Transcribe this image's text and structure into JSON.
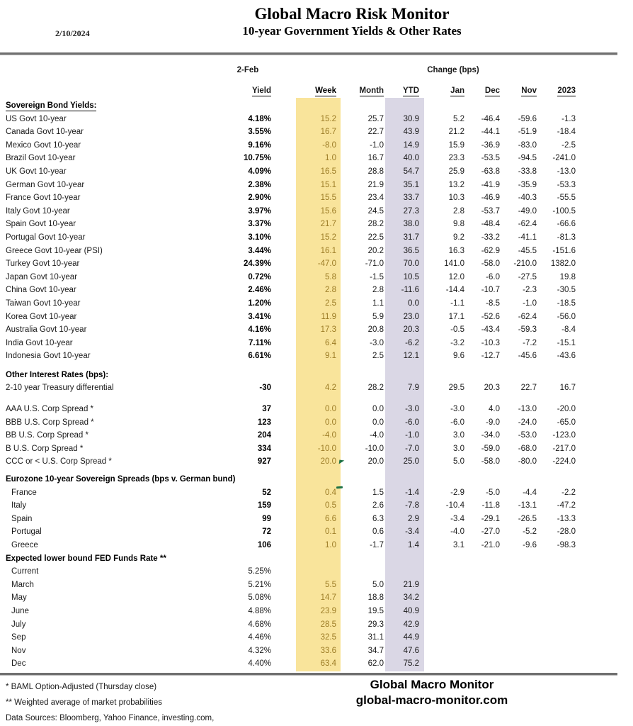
{
  "header": {
    "date": "2/10/2024",
    "title": "Global Macro Risk Monitor",
    "subtitle": "10-year Government Yields & Other Rates"
  },
  "table": {
    "as_of_label": "2-Feb",
    "change_group_label": "Change (bps)",
    "columns": [
      "Yield",
      "Week",
      "Month",
      "YTD",
      "Jan",
      "Dec",
      "Nov",
      "2023"
    ],
    "colors": {
      "week_band": "#F9E49B",
      "ytd_band": "#DAD7E5",
      "week_text": "#9C7C26",
      "comment_mark_green": "#1E7145"
    },
    "sections": [
      {
        "header": "Sovereign Bond Yields:",
        "underline": true,
        "bold_yield": true,
        "gap_before": 0,
        "rows": [
          {
            "label": "US Govt 10-year",
            "values": [
              "4.18%",
              "15.2",
              "25.7",
              "30.9",
              "5.2",
              "-46.4",
              "-59.6",
              "-1.3"
            ]
          },
          {
            "label": "Canada Govt 10-year",
            "values": [
              "3.55%",
              "16.7",
              "22.7",
              "43.9",
              "21.2",
              "-44.1",
              "-51.9",
              "-18.4"
            ]
          },
          {
            "label": "Mexico Govt 10-year",
            "values": [
              "9.16%",
              "-8.0",
              "-1.0",
              "14.9",
              "15.9",
              "-36.9",
              "-83.0",
              "-2.5"
            ]
          },
          {
            "label": "Brazil Govt 10-year",
            "values": [
              "10.75%",
              "1.0",
              "16.7",
              "40.0",
              "23.3",
              "-53.5",
              "-94.5",
              "-241.0"
            ]
          },
          {
            "label": "UK Govt 10-year",
            "values": [
              "4.09%",
              "16.5",
              "28.8",
              "54.7",
              "25.9",
              "-63.8",
              "-33.8",
              "-13.0"
            ]
          },
          {
            "label": "German Govt 10-year",
            "values": [
              "2.38%",
              "15.1",
              "21.9",
              "35.1",
              "13.2",
              "-41.9",
              "-35.9",
              "-53.3"
            ]
          },
          {
            "label": "France Govt 10-year",
            "values": [
              "2.90%",
              "15.5",
              "23.4",
              "33.7",
              "10.3",
              "-46.9",
              "-40.3",
              "-55.5"
            ]
          },
          {
            "label": "Italy Govt 10-year",
            "values": [
              "3.97%",
              "15.6",
              "24.5",
              "27.3",
              "2.8",
              "-53.7",
              "-49.0",
              "-100.5"
            ]
          },
          {
            "label": "Spain Govt 10-year",
            "values": [
              "3.37%",
              "21.7",
              "28.2",
              "38.0",
              "9.8",
              "-48.4",
              "-62.4",
              "-66.6"
            ]
          },
          {
            "label": "Portugal Govt 10-year",
            "values": [
              "3.10%",
              "15.2",
              "22.5",
              "31.7",
              "9.2",
              "-33.2",
              "-41.1",
              "-81.3"
            ]
          },
          {
            "label": "Greece Govt 10-year (PSI)",
            "values": [
              "3.44%",
              "16.1",
              "20.2",
              "36.5",
              "16.3",
              "-62.9",
              "-45.5",
              "-151.6"
            ]
          },
          {
            "label": "Turkey Govt 10-year",
            "values": [
              "24.39%",
              "-47.0",
              "-71.0",
              "70.0",
              "141.0",
              "-58.0",
              "-210.0",
              "1382.0"
            ]
          },
          {
            "label": "Japan Govt 10-year",
            "values": [
              "0.72%",
              "5.8",
              "-1.5",
              "10.5",
              "12.0",
              "-6.0",
              "-27.5",
              "19.8"
            ]
          },
          {
            "label": "China Govt 10-year",
            "values": [
              "2.46%",
              "2.8",
              "2.8",
              "-11.6",
              "-14.4",
              "-10.7",
              "-2.3",
              "-30.5"
            ]
          },
          {
            "label": "Taiwan Govt 10-year",
            "values": [
              "1.20%",
              "2.5",
              "1.1",
              "0.0",
              "-1.1",
              "-8.5",
              "-1.0",
              "-18.5"
            ]
          },
          {
            "label": "Korea Govt 10-year",
            "values": [
              "3.41%",
              "11.9",
              "5.9",
              "23.0",
              "17.1",
              "-52.6",
              "-62.4",
              "-56.0"
            ]
          },
          {
            "label": "Australia Govt 10-year",
            "values": [
              "4.16%",
              "17.3",
              "20.8",
              "20.3",
              "-0.5",
              "-43.4",
              "-59.3",
              "-8.4"
            ]
          },
          {
            "label": "India Govt 10-year",
            "values": [
              "7.11%",
              "6.4",
              "-3.0",
              "-6.2",
              "-3.2",
              "-10.3",
              "-7.2",
              "-15.1"
            ]
          },
          {
            "label": "Indonesia Govt 10-year",
            "values": [
              "6.61%",
              "9.1",
              "2.5",
              "12.1",
              "9.6",
              "-12.7",
              "-45.6",
              "-43.6"
            ]
          }
        ]
      },
      {
        "header": "Other Interest Rates  (bps):",
        "underline": false,
        "bold_yield": true,
        "gap_before": 8,
        "rows": [
          {
            "label": "2-10 year Treasury differential",
            "values": [
              "-30",
              "4.2",
              "28.2",
              "7.9",
              "29.5",
              "20.3",
              "22.7",
              "16.7"
            ]
          },
          {
            "label": "AAA U.S. Corp Spread *",
            "gap_before": 11,
            "values": [
              "37",
              "0.0",
              "0.0",
              "-3.0",
              "-3.0",
              "4.0",
              "-13.0",
              "-20.0"
            ]
          },
          {
            "label": "BBB U.S. Corp Spread *",
            "values": [
              "123",
              "0.0",
              "0.0",
              "-6.0",
              "-6.0",
              "-9.0",
              "-24.0",
              "-65.0"
            ]
          },
          {
            "label": "BB U.S. Corp Spread *",
            "values": [
              "204",
              "-4.0",
              "-4.0",
              "-1.0",
              "3.0",
              "-34.0",
              "-53.0",
              "-123.0"
            ]
          },
          {
            "label": "B U.S. Corp Spread *",
            "values": [
              "334",
              "-10.0",
              "-10.0",
              "-7.0",
              "3.0",
              "-59.0",
              "-68.0",
              "-217.0"
            ]
          },
          {
            "label": "CCC or < U.S. Corp Spread *",
            "values": [
              "927",
              "20.0",
              "20.0",
              "25.0",
              "5.0",
              "-58.0",
              "-80.0",
              "-224.0"
            ]
          }
        ]
      },
      {
        "header": "Eurozone 10-year Sovereign Spreads (bps v. German bund)",
        "underline": false,
        "bold_yield": true,
        "gap_before": 6,
        "rows": [
          {
            "label": "France",
            "indent": true,
            "values": [
              "52",
              "0.4",
              "1.5",
              "-1.4",
              "-2.9",
              "-5.0",
              "-4.4",
              "-2.2"
            ]
          },
          {
            "label": "Italy",
            "indent": true,
            "values": [
              "159",
              "0.5",
              "2.6",
              "-7.8",
              "-10.4",
              "-11.8",
              "-13.1",
              "-47.2"
            ]
          },
          {
            "label": "Spain",
            "indent": true,
            "values": [
              "99",
              "6.6",
              "6.3",
              "2.9",
              "-3.4",
              "-29.1",
              "-26.5",
              "-13.3"
            ]
          },
          {
            "label": "Portugal",
            "indent": true,
            "values": [
              "72",
              "0.1",
              "0.6",
              "-3.4",
              "-4.0",
              "-27.0",
              "-5.2",
              "-28.0"
            ]
          },
          {
            "label": "Greece",
            "indent": true,
            "values": [
              "106",
              "1.0",
              "-1.7",
              "1.4",
              "3.1",
              "-21.0",
              "-9.6",
              "-98.3"
            ]
          }
        ]
      },
      {
        "header": "Expected lower bound FED Funds Rate **",
        "underline": false,
        "bold_yield": false,
        "gap_before": 0,
        "rows": [
          {
            "label": "Current",
            "indent": true,
            "values": [
              "5.25%",
              "",
              "",
              "",
              "",
              "",
              "",
              ""
            ]
          },
          {
            "label": "March",
            "indent": true,
            "values": [
              "5.21%",
              "5.5",
              "5.0",
              "21.9",
              "",
              "",
              "",
              ""
            ]
          },
          {
            "label": "May",
            "indent": true,
            "values": [
              "5.08%",
              "14.7",
              "18.8",
              "34.2",
              "",
              "",
              "",
              ""
            ]
          },
          {
            "label": "June",
            "indent": true,
            "values": [
              "4.88%",
              "23.9",
              "19.5",
              "40.9",
              "",
              "",
              "",
              ""
            ]
          },
          {
            "label": "July",
            "indent": true,
            "values": [
              "4.68%",
              "28.5",
              "29.3",
              "42.9",
              "",
              "",
              "",
              ""
            ]
          },
          {
            "label": "Sep",
            "indent": true,
            "values": [
              "4.46%",
              "32.5",
              "31.1",
              "44.9",
              "",
              "",
              "",
              ""
            ]
          },
          {
            "label": "Nov",
            "indent": true,
            "values": [
              "4.32%",
              "33.6",
              "34.7",
              "47.6",
              "",
              "",
              "",
              ""
            ]
          },
          {
            "label": "Dec",
            "indent": true,
            "values": [
              "4.40%",
              "63.4",
              "62.0",
              "75.2",
              "",
              "",
              "",
              ""
            ]
          }
        ]
      }
    ]
  },
  "footer": {
    "footnote1": "* BAML Option-Adjusted (Thursday close)",
    "footnote2": "** Weighted average of market probabilities",
    "data_sources": "Data Sources:  Bloomberg,  Yahoo Finance, investing.com,",
    "brand_name": "Global Macro Monitor",
    "brand_url": "global-macro-monitor.com"
  }
}
